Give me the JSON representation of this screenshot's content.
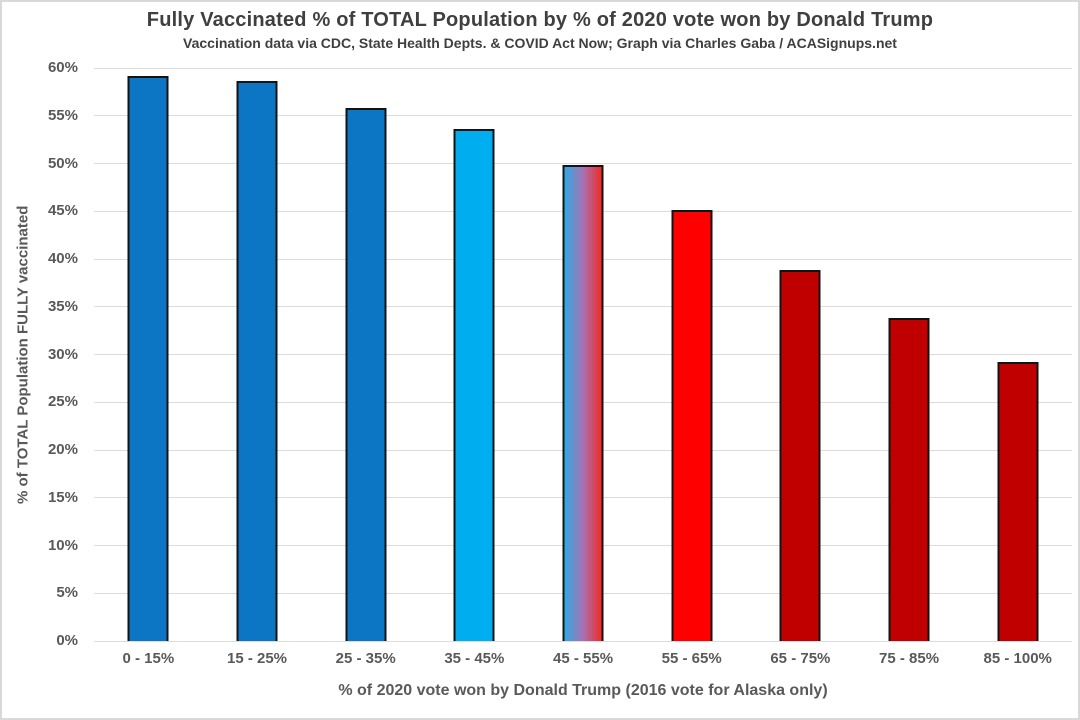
{
  "chart_data": {
    "type": "bar",
    "title": "Fully Vaccinated % of TOTAL Population by % of 2020 vote won by Donald Trump",
    "subtitle": "Vaccination data via CDC, State Health Depts. & COVID Act Now; Graph via Charles Gaba / ACASignups.net",
    "xlabel": "% of 2020 vote won by Donald Trump (2016 vote for Alaska only)",
    "ylabel": "% of TOTAL Population FULLY vaccinated",
    "categories": [
      "0 - 15%",
      "15 - 25%",
      "25 - 35%",
      "35 - 45%",
      "45 - 55%",
      "55 - 65%",
      "65 - 75%",
      "75 - 85%",
      "85 - 100%"
    ],
    "values": [
      59.2,
      58.6,
      55.8,
      53.6,
      49.8,
      45.1,
      38.8,
      33.8,
      29.2
    ],
    "bar_colors": [
      "#0d76c4",
      "#0d76c4",
      "#0d76c4",
      "#00aeef",
      "gradient",
      "#fe0000",
      "#c00000",
      "#c00000",
      "#c00000"
    ],
    "gradient_stops": [
      "#2fa9e3",
      "#a871b3",
      "#f02c25"
    ],
    "ylim": [
      0,
      60
    ],
    "ytick_step": 5,
    "ytick_suffix": "%",
    "grid": true,
    "legend": false,
    "colors": {
      "title_text": "#3f3f3f",
      "axis_text": "#595959",
      "gridline": "#dcdcdc",
      "bar_outline": "#131313",
      "background": "#ffffff",
      "frame_border": "#d9d9d9"
    }
  }
}
